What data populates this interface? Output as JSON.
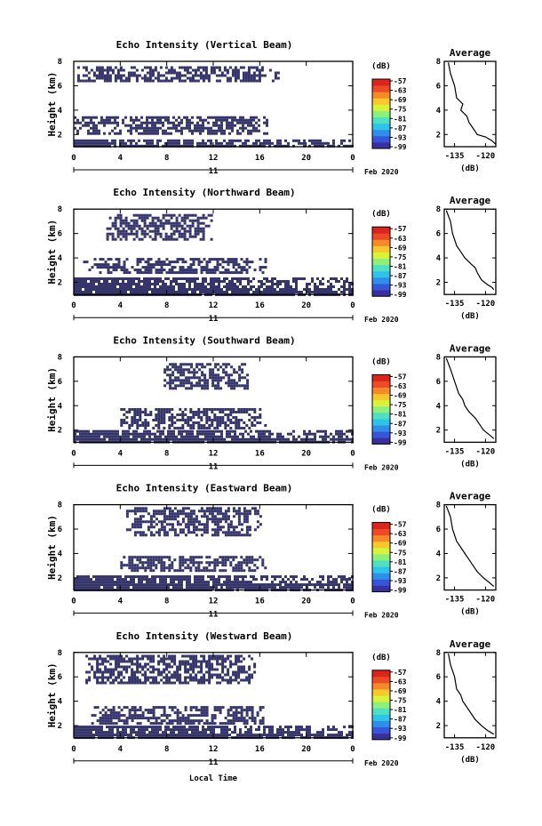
{
  "figure": {
    "day_label": "11",
    "month_year": "Feb 2020",
    "xlabel": "Local Time",
    "colors": {
      "echo": "#35356b",
      "colorbar": [
        "#3a2fa0",
        "#3656d8",
        "#2f8fe8",
        "#2ec4e8",
        "#4fe0c0",
        "#8ef07a",
        "#d9f23a",
        "#f7c72d",
        "#f6892a",
        "#ef4a28",
        "#d8261c"
      ]
    }
  },
  "chart_data": [
    {
      "type": "heatmap",
      "title": "Echo Intensity (Vertical Beam)",
      "ylabel": "Height (km)",
      "x_ticks": [
        "0",
        "4",
        "8",
        "12",
        "16",
        "20",
        "0"
      ],
      "y_ticks": [
        "2",
        "4",
        "6",
        "8"
      ],
      "xlim": [
        0,
        24
      ],
      "ylim": [
        1,
        8
      ],
      "colorbar": {
        "label": "(dB)",
        "ticks": [
          "-57",
          "-63",
          "-69",
          "-75",
          "-81",
          "-87",
          "-93",
          "-99"
        ]
      },
      "echo_regions": [
        {
          "t_start": 0.3,
          "t_end": 17.5,
          "h_low": 6.4,
          "h_high": 7.6
        },
        {
          "t_start": 0.0,
          "t_end": 16.8,
          "h_low": 2.1,
          "h_high": 3.5
        },
        {
          "t_start": 0.0,
          "t_end": 24.0,
          "h_low": 1.0,
          "h_high": 1.6
        }
      ],
      "profile": {
        "title": "Average",
        "xlabel": "(dB)",
        "x_ticks": [
          "-135",
          "-120"
        ],
        "y_ticks": [
          "2",
          "4",
          "6",
          "8"
        ],
        "xlim": [
          -140,
          -115
        ],
        "ylim": [
          1,
          8
        ],
        "x": [
          -138,
          -137,
          -135,
          -134,
          -131,
          -132,
          -129,
          -128,
          -126,
          -124,
          -120,
          -117,
          -115
        ],
        "y": [
          7.9,
          7.0,
          6.0,
          5.0,
          4.5,
          4.0,
          3.5,
          3.0,
          2.5,
          2.0,
          1.8,
          1.5,
          1.2
        ]
      }
    },
    {
      "type": "heatmap",
      "title": "Echo Intensity (Northward Beam)",
      "ylabel": "Height (km)",
      "x_ticks": [
        "0",
        "4",
        "8",
        "12",
        "16",
        "20",
        "0"
      ],
      "y_ticks": [
        "2",
        "4",
        "6",
        "8"
      ],
      "xlim": [
        0,
        24
      ],
      "ylim": [
        1,
        8
      ],
      "colorbar": {
        "label": "(dB)",
        "ticks": [
          "-57",
          "-63",
          "-69",
          "-75",
          "-81",
          "-87",
          "-93",
          "-99"
        ]
      },
      "echo_regions": [
        {
          "t_start": 2.8,
          "t_end": 11.8,
          "h_low": 5.5,
          "h_high": 7.6
        },
        {
          "t_start": 0.8,
          "t_end": 16.5,
          "h_low": 2.8,
          "h_high": 4.0
        },
        {
          "t_start": 0.0,
          "t_end": 24.0,
          "h_low": 1.0,
          "h_high": 2.4
        }
      ],
      "profile": {
        "title": "Average",
        "xlabel": "(dB)",
        "x_ticks": [
          "-135",
          "-120"
        ],
        "y_ticks": [
          "2",
          "4",
          "6",
          "8"
        ],
        "xlim": [
          -140,
          -115
        ],
        "ylim": [
          1,
          8
        ],
        "x": [
          -139,
          -137,
          -136,
          -134,
          -132,
          -130,
          -127,
          -125,
          -124,
          -122,
          -119,
          -117,
          -116
        ],
        "y": [
          7.9,
          7.0,
          6.0,
          5.0,
          4.5,
          4.0,
          3.5,
          3.2,
          2.8,
          2.2,
          1.8,
          1.6,
          1.4
        ]
      }
    },
    {
      "type": "heatmap",
      "title": "Echo Intensity (Southward Beam)",
      "ylabel": "Height (km)",
      "x_ticks": [
        "0",
        "4",
        "8",
        "12",
        "16",
        "20",
        "0"
      ],
      "y_ticks": [
        "2",
        "4",
        "6",
        "8"
      ],
      "xlim": [
        0,
        24
      ],
      "ylim": [
        1,
        8
      ],
      "colorbar": {
        "label": "(dB)",
        "ticks": [
          "-57",
          "-63",
          "-69",
          "-75",
          "-81",
          "-87",
          "-93",
          "-99"
        ]
      },
      "echo_regions": [
        {
          "t_start": 7.5,
          "t_end": 15.0,
          "h_low": 5.5,
          "h_high": 7.5
        },
        {
          "t_start": 4.0,
          "t_end": 16.5,
          "h_low": 2.2,
          "h_high": 3.8
        },
        {
          "t_start": 0.0,
          "t_end": 24.0,
          "h_low": 1.0,
          "h_high": 2.0
        }
      ],
      "profile": {
        "title": "Average",
        "xlabel": "(dB)",
        "x_ticks": [
          "-135",
          "-120"
        ],
        "y_ticks": [
          "2",
          "4",
          "6",
          "8"
        ],
        "xlim": [
          -140,
          -115
        ],
        "ylim": [
          1,
          8
        ],
        "x": [
          -139,
          -137,
          -135,
          -133,
          -131,
          -130,
          -128,
          -125,
          -123,
          -121,
          -118,
          -116
        ],
        "y": [
          7.9,
          7.0,
          6.0,
          5.0,
          4.5,
          4.0,
          3.5,
          3.0,
          2.5,
          2.0,
          1.6,
          1.3
        ]
      }
    },
    {
      "type": "heatmap",
      "title": "Echo Intensity (Eastward Beam)",
      "ylabel": "Height (km)",
      "x_ticks": [
        "0",
        "4",
        "8",
        "12",
        "16",
        "20",
        "0"
      ],
      "y_ticks": [
        "2",
        "4",
        "6",
        "8"
      ],
      "xlim": [
        0,
        24
      ],
      "ylim": [
        1,
        8
      ],
      "colorbar": {
        "label": "(dB)",
        "ticks": [
          "-57",
          "-63",
          "-69",
          "-75",
          "-81",
          "-87",
          "-93",
          "-99"
        ]
      },
      "echo_regions": [
        {
          "t_start": 4.5,
          "t_end": 16.0,
          "h_low": 5.6,
          "h_high": 7.8
        },
        {
          "t_start": 4.0,
          "t_end": 16.5,
          "h_low": 2.5,
          "h_high": 3.8
        },
        {
          "t_start": 0.0,
          "t_end": 24.0,
          "h_low": 1.0,
          "h_high": 2.2
        }
      ],
      "profile": {
        "title": "Average",
        "xlabel": "(dB)",
        "x_ticks": [
          "-135",
          "-120"
        ],
        "y_ticks": [
          "2",
          "4",
          "6",
          "8"
        ],
        "xlim": [
          -140,
          -115
        ],
        "ylim": [
          1,
          8
        ],
        "x": [
          -139,
          -137,
          -136,
          -134,
          -132,
          -130,
          -128,
          -126,
          -124,
          -121,
          -118,
          -116
        ],
        "y": [
          7.9,
          7.0,
          6.0,
          5.0,
          4.5,
          4.0,
          3.5,
          3.0,
          2.5,
          2.0,
          1.6,
          1.3
        ]
      }
    },
    {
      "type": "heatmap",
      "title": "Echo Intensity (Westward Beam)",
      "ylabel": "Height (km)",
      "x_ticks": [
        "0",
        "4",
        "8",
        "12",
        "16",
        "20",
        "0"
      ],
      "y_ticks": [
        "2",
        "4",
        "6",
        "8"
      ],
      "xlim": [
        0,
        24
      ],
      "ylim": [
        1,
        8
      ],
      "colorbar": {
        "label": "(dB)",
        "ticks": [
          "-57",
          "-63",
          "-69",
          "-75",
          "-81",
          "-87",
          "-93",
          "-99"
        ]
      },
      "echo_regions": [
        {
          "t_start": 1.0,
          "t_end": 15.5,
          "h_low": 5.6,
          "h_high": 7.8
        },
        {
          "t_start": 1.5,
          "t_end": 16.5,
          "h_low": 2.2,
          "h_high": 3.6
        },
        {
          "t_start": 0.0,
          "t_end": 24.0,
          "h_low": 1.0,
          "h_high": 2.0
        }
      ],
      "profile": {
        "title": "Average",
        "xlabel": "(dB)",
        "x_ticks": [
          "-135",
          "-120"
        ],
        "y_ticks": [
          "2",
          "4",
          "6",
          "8"
        ],
        "xlim": [
          -140,
          -115
        ],
        "ylim": [
          1,
          8
        ],
        "x": [
          -138,
          -137,
          -135,
          -134,
          -132,
          -131,
          -129,
          -127,
          -125,
          -122,
          -119,
          -116
        ],
        "y": [
          7.9,
          7.0,
          6.0,
          5.0,
          4.5,
          4.0,
          3.5,
          3.0,
          2.5,
          2.0,
          1.6,
          1.3
        ]
      }
    }
  ]
}
